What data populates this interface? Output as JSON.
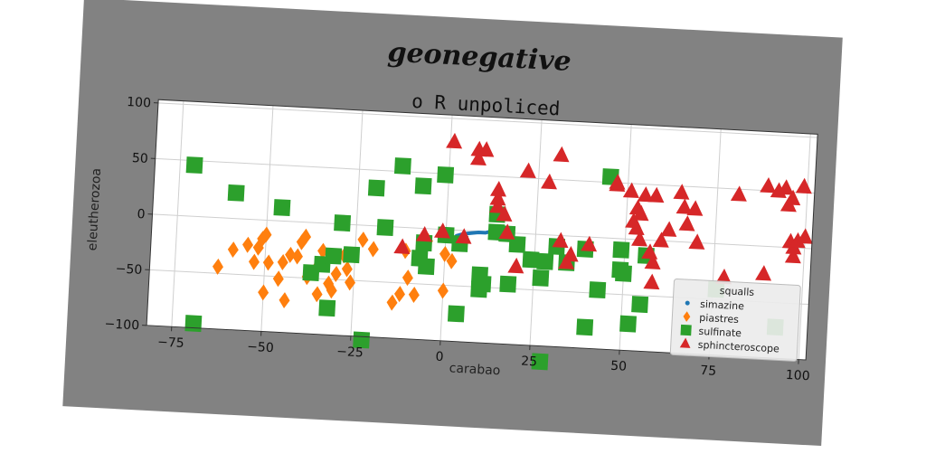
{
  "colors": {
    "figure_bg": "#828282",
    "axes_bg": "#ffffff",
    "grid": "#cfcfcf",
    "squalls": "#1f77b4",
    "simazine": "#ff7f0e",
    "piastres": "#2ca02c",
    "sulfinate": "#d62728"
  },
  "chart_data": {
    "type": "scatter",
    "suptitle": "geonegative",
    "title": "o R unpoliced",
    "xlabel": "carabao",
    "ylabel": "eleutherozoa",
    "xlim": [
      -82,
      102
    ],
    "ylim": [
      -100,
      103
    ],
    "xticks": [
      -75,
      -50,
      -25,
      0,
      25,
      50,
      75,
      100
    ],
    "yticks": [
      -100,
      -50,
      0,
      50,
      100
    ],
    "grid": true,
    "legend_position": "lower-right",
    "legend_title": "squalls",
    "series": [
      {
        "name": "simazine",
        "marker": "line",
        "points": [
          [
            3,
            -5
          ],
          [
            5,
            -3
          ],
          [
            7,
            -2
          ],
          [
            9,
            -1
          ],
          [
            11,
            -1
          ],
          [
            12,
            0
          ]
        ]
      },
      {
        "name": "piastres",
        "marker": "diamond",
        "points": [
          [
            -63,
            -44
          ],
          [
            -59,
            -28
          ],
          [
            -55,
            -23
          ],
          [
            -53,
            -38
          ],
          [
            -52,
            -25
          ],
          [
            -51,
            -17
          ],
          [
            -50,
            -65
          ],
          [
            -50,
            -13
          ],
          [
            -49,
            -38
          ],
          [
            -46,
            -52
          ],
          [
            -45,
            -37
          ],
          [
            -44,
            -71
          ],
          [
            -43,
            -30
          ],
          [
            -41,
            -31
          ],
          [
            -40,
            -18
          ],
          [
            -39,
            -13
          ],
          [
            -38,
            -49
          ],
          [
            -35,
            -38
          ],
          [
            -35,
            -64
          ],
          [
            -34,
            -25
          ],
          [
            -32,
            -54
          ],
          [
            -31,
            -60
          ],
          [
            -30,
            -45
          ],
          [
            -28,
            -28
          ],
          [
            -27,
            -40
          ],
          [
            -26,
            -52
          ],
          [
            -23,
            -13
          ],
          [
            -20,
            -21
          ],
          [
            -14,
            -68
          ],
          [
            -12,
            -60
          ],
          [
            -11,
            -21
          ],
          [
            -10,
            -45
          ],
          [
            -8,
            -60
          ],
          [
            -6,
            -16
          ],
          [
            -5,
            -11
          ],
          [
            0,
            -22
          ],
          [
            0,
            -55
          ],
          [
            2,
            -28
          ]
        ]
      },
      {
        "name": "sulfinate",
        "marker": "square",
        "points": [
          [
            -71,
            46
          ],
          [
            -69,
            -96
          ],
          [
            -59,
            23
          ],
          [
            -46,
            12
          ],
          [
            -37,
            -45
          ],
          [
            -34,
            -37
          ],
          [
            -32,
            -76
          ],
          [
            -31,
            -29
          ],
          [
            -29,
            1
          ],
          [
            -26,
            -27
          ],
          [
            -22,
            -103
          ],
          [
            -20,
            34
          ],
          [
            -17,
            -1
          ],
          [
            -13,
            55
          ],
          [
            -7,
            38
          ],
          [
            -7,
            -27
          ],
          [
            -6,
            -13
          ],
          [
            -5,
            -34
          ],
          [
            -1,
            49
          ],
          [
            0,
            -5
          ],
          [
            4,
            -75
          ],
          [
            4,
            -12
          ],
          [
            10,
            -52
          ],
          [
            10,
            -39
          ],
          [
            11,
            -47
          ],
          [
            14,
            16
          ],
          [
            14,
            0
          ],
          [
            17,
            -1
          ],
          [
            18,
            -46
          ],
          [
            20,
            -10
          ],
          [
            24,
            -23
          ],
          [
            27,
            -39
          ],
          [
            28,
            -24
          ],
          [
            28,
            -114
          ],
          [
            31,
            -10
          ],
          [
            34,
            -24
          ],
          [
            39,
            -11
          ],
          [
            40,
            -81
          ],
          [
            43,
            -47
          ],
          [
            45,
            55
          ],
          [
            49,
            -28
          ],
          [
            49,
            -10
          ],
          [
            50,
            -31
          ],
          [
            52,
            -76
          ],
          [
            55,
            -58
          ],
          [
            56,
            -14
          ],
          [
            76,
            -41
          ],
          [
            93,
            -72
          ]
        ]
      },
      {
        "name": "sphincteroscope",
        "marker": "triangle",
        "points": [
          [
            -12,
            -18
          ],
          [
            -6,
            -6
          ],
          [
            -1,
            -2
          ],
          [
            1,
            79
          ],
          [
            5,
            -6
          ],
          [
            8,
            73
          ],
          [
            8,
            65
          ],
          [
            10,
            73
          ],
          [
            14,
            38
          ],
          [
            14,
            30
          ],
          [
            14,
            23
          ],
          [
            16,
            16
          ],
          [
            17,
            0
          ],
          [
            22,
            56
          ],
          [
            20,
            -30
          ],
          [
            28,
            47
          ],
          [
            31,
            72
          ],
          [
            32,
            -5
          ],
          [
            34,
            -24
          ],
          [
            35,
            -17
          ],
          [
            40,
            -7
          ],
          [
            47,
            48
          ],
          [
            47,
            50
          ],
          [
            51,
            43
          ],
          [
            52,
            16
          ],
          [
            53,
            28
          ],
          [
            53,
            10
          ],
          [
            54,
            0
          ],
          [
            54,
            23
          ],
          [
            55,
            40
          ],
          [
            57,
            -11
          ],
          [
            58,
            -20
          ],
          [
            58,
            40
          ],
          [
            58,
            -38
          ],
          [
            60,
            0
          ],
          [
            62,
            10
          ],
          [
            65,
            44
          ],
          [
            66,
            31
          ],
          [
            67,
            16
          ],
          [
            69,
            30
          ],
          [
            70,
            0
          ],
          [
            78,
            -30
          ],
          [
            81,
            45
          ],
          [
            89,
            54
          ],
          [
            89,
            -25
          ],
          [
            92,
            50
          ],
          [
            94,
            53
          ],
          [
            95,
            38
          ],
          [
            96,
            44
          ],
          [
            96,
            5
          ],
          [
            97,
            -8
          ],
          [
            97,
            0
          ],
          [
            98,
            6
          ],
          [
            99,
            55
          ],
          [
            100,
            10
          ]
        ]
      }
    ]
  }
}
